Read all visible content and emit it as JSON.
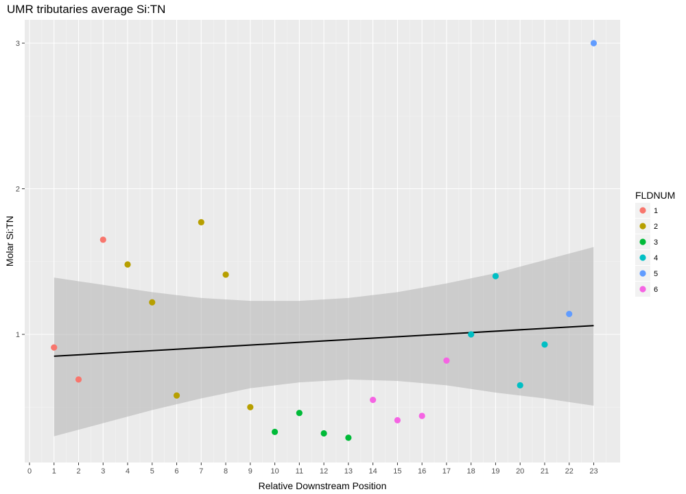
{
  "chart_data": {
    "type": "scatter",
    "title": "UMR tributaries average Si:TN",
    "xlabel": "Relative Downstream Position",
    "ylabel": "Molar Si:TN",
    "xlim": [
      0,
      23
    ],
    "ylim": [
      0.2,
      3.05
    ],
    "x_ticks": [
      "0",
      "1",
      "2",
      "3",
      "4",
      "5",
      "6",
      "7",
      "8",
      "9",
      "10",
      "11",
      "12",
      "13",
      "14",
      "15",
      "16",
      "17",
      "18",
      "19",
      "20",
      "21",
      "22",
      "23"
    ],
    "y_ticks": [
      "1",
      "2",
      "3"
    ],
    "grid": true,
    "legend": {
      "title": "FLDNUM",
      "position": "right",
      "entries": [
        {
          "label": "1",
          "color": "#F8766D"
        },
        {
          "label": "2",
          "color": "#B79F00"
        },
        {
          "label": "3",
          "color": "#00BA38"
        },
        {
          "label": "4",
          "color": "#00BFC4"
        },
        {
          "label": "5",
          "color": "#619CFF"
        },
        {
          "label": "6",
          "color": "#F564E3"
        }
      ]
    },
    "points": [
      {
        "x": 1,
        "y": 0.91,
        "group": "1"
      },
      {
        "x": 2,
        "y": 0.69,
        "group": "1"
      },
      {
        "x": 3,
        "y": 1.65,
        "group": "1"
      },
      {
        "x": 4,
        "y": 1.48,
        "group": "2"
      },
      {
        "x": 5,
        "y": 1.22,
        "group": "2"
      },
      {
        "x": 6,
        "y": 0.58,
        "group": "2"
      },
      {
        "x": 7,
        "y": 1.77,
        "group": "2"
      },
      {
        "x": 8,
        "y": 1.41,
        "group": "2"
      },
      {
        "x": 9,
        "y": 0.5,
        "group": "2"
      },
      {
        "x": 10,
        "y": 0.33,
        "group": "3"
      },
      {
        "x": 11,
        "y": 0.46,
        "group": "3"
      },
      {
        "x": 12,
        "y": 0.32,
        "group": "3"
      },
      {
        "x": 13,
        "y": 0.29,
        "group": "3"
      },
      {
        "x": 14,
        "y": 0.55,
        "group": "6"
      },
      {
        "x": 15,
        "y": 0.41,
        "group": "6"
      },
      {
        "x": 16,
        "y": 0.44,
        "group": "6"
      },
      {
        "x": 17,
        "y": 0.82,
        "group": "6"
      },
      {
        "x": 18,
        "y": 1.0,
        "group": "4"
      },
      {
        "x": 19,
        "y": 1.4,
        "group": "4"
      },
      {
        "x": 20,
        "y": 0.65,
        "group": "4"
      },
      {
        "x": 21,
        "y": 0.93,
        "group": "4"
      },
      {
        "x": 22,
        "y": 1.14,
        "group": "5"
      },
      {
        "x": 23,
        "y": 3.0,
        "group": "5"
      }
    ],
    "fit_line": {
      "x": [
        1,
        23
      ],
      "y": [
        0.85,
        1.06
      ],
      "color": "#000000"
    },
    "confidence_band": {
      "x": [
        1,
        3,
        5,
        7,
        9,
        11,
        13,
        15,
        17,
        19,
        21,
        23
      ],
      "upper": [
        1.39,
        1.34,
        1.29,
        1.25,
        1.23,
        1.23,
        1.25,
        1.29,
        1.35,
        1.42,
        1.51,
        1.6
      ],
      "lower": [
        0.3,
        0.39,
        0.48,
        0.56,
        0.63,
        0.67,
        0.69,
        0.68,
        0.65,
        0.6,
        0.56,
        0.51
      ]
    },
    "colors": {
      "panel_background": "#EBEBEB",
      "grid_major": "#FFFFFF",
      "band": "#B3B3B3"
    }
  }
}
